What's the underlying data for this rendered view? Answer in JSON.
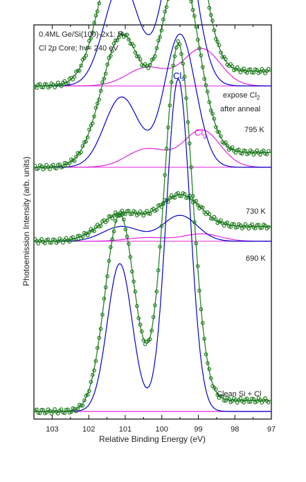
{
  "chart_data": {
    "type": "line",
    "xlabel": "Relative Binding Energy (eV)",
    "ylabel": "Photoemission Intensity (arb. units)",
    "xlim": [
      103.5,
      97.0
    ],
    "x_reversed": true,
    "xticks": [
      "103",
      "102",
      "101",
      "100",
      "99",
      "98",
      "97"
    ],
    "title_lines": [
      "0.4ML Ge/Si(100)-2x1: H",
      "Cl 2",
      "p",
      " Core; hv= 240 eV"
    ],
    "annotations": {
      "expose_a": "expose Cl",
      "expose_sub": "2",
      "after_anneal": "after anneal",
      "cls": "Cl",
      "cls_sub": "s",
      "clg": "Cl",
      "clg_sub": "g"
    },
    "colors": {
      "data": "#1f7a1f",
      "total_fit": "#2e8b2e",
      "surface": "#0000cc",
      "gas": "#e020e0",
      "axis": "#000000"
    },
    "spectra": [
      {
        "label": "795 K",
        "baseline": 0.88,
        "data_amp_a": 0.42,
        "peak_a": 101.1,
        "width_a": 0.55,
        "data_amp_b": 0.64,
        "peak_b": 99.5,
        "width_b": 0.5,
        "surface_amp_a": 0.28,
        "surface_amp_b": 0.45,
        "gas_amp_a": 0.05,
        "gas_peak_a": 100.4,
        "gas_amp_b": 0.1,
        "gas_peak_b": 98.9
      },
      {
        "label": "730 K",
        "baseline": 0.66,
        "data_amp_a": 0.35,
        "peak_a": 101.1,
        "width_a": 0.55,
        "data_amp_b": 0.5,
        "peak_b": 99.5,
        "width_b": 0.5,
        "surface_amp_a": 0.19,
        "surface_amp_b": 0.36,
        "gas_amp_a": 0.05,
        "gas_peak_a": 100.4,
        "gas_amp_b": 0.1,
        "gas_peak_b": 98.9
      },
      {
        "label": "690 K",
        "baseline": 0.46,
        "data_amp_a": 0.07,
        "peak_a": 101.1,
        "width_a": 0.6,
        "data_amp_b": 0.09,
        "peak_b": 99.5,
        "width_b": 0.55,
        "surface_amp_a": 0.04,
        "surface_amp_b": 0.07,
        "gas_amp_a": 0.01,
        "gas_peak_a": 100.4,
        "gas_amp_b": 0.02,
        "gas_peak_b": 98.9
      },
      {
        "label": "Clean Si + Cl",
        "baseline": 0.0,
        "data_amp_a": 0.53,
        "peak_a": 101.15,
        "width_a": 0.4,
        "data_amp_b": 0.97,
        "peak_b": 99.55,
        "width_b": 0.38,
        "surface_amp_a": 0.4,
        "surface_amp_b": 0.9,
        "gas_amp_a": 0,
        "gas_peak_a": 100.4,
        "gas_amp_b": 0,
        "gas_peak_b": 98.9
      }
    ]
  }
}
